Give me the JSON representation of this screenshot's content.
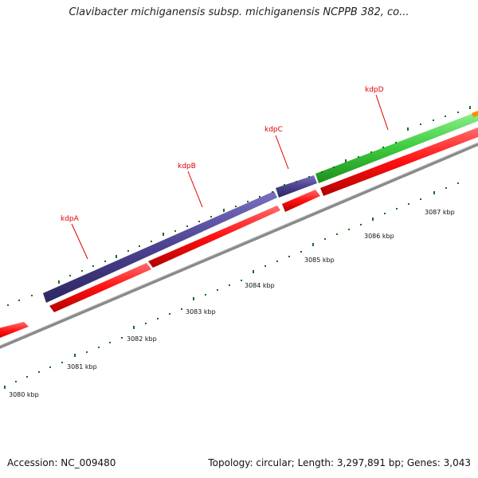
{
  "header": {
    "title": "Clavibacter michiganensis subsp. michiganensis NCPPB 382, co..."
  },
  "footer": {
    "accession": "Accession: NC_009480",
    "summary": "Topology: circular; Length: 3,297,891 bp; Genes: 3,043"
  },
  "colors": {
    "backbone": "#8a8a8a",
    "cds": "#ff1010",
    "purple_feature": "#4a4290",
    "green_feature": "#3ecb3e",
    "orange_feature": "#ff8c00",
    "tick": "#1a6e1a",
    "label": "#e00000"
  },
  "genes": [
    {
      "id": "kdpA",
      "label": "kdpA"
    },
    {
      "id": "kdpB",
      "label": "kdpB"
    },
    {
      "id": "kdpC",
      "label": "kdpC"
    },
    {
      "id": "kdpD",
      "label": "kdpD"
    }
  ],
  "scale": {
    "unit": "kbp",
    "labels": [
      "3080 kbp",
      "3081 kbp",
      "3082 kbp",
      "3083 kbp",
      "3084 kbp",
      "3085 kbp",
      "3086 kbp",
      "3087 kbp"
    ]
  }
}
